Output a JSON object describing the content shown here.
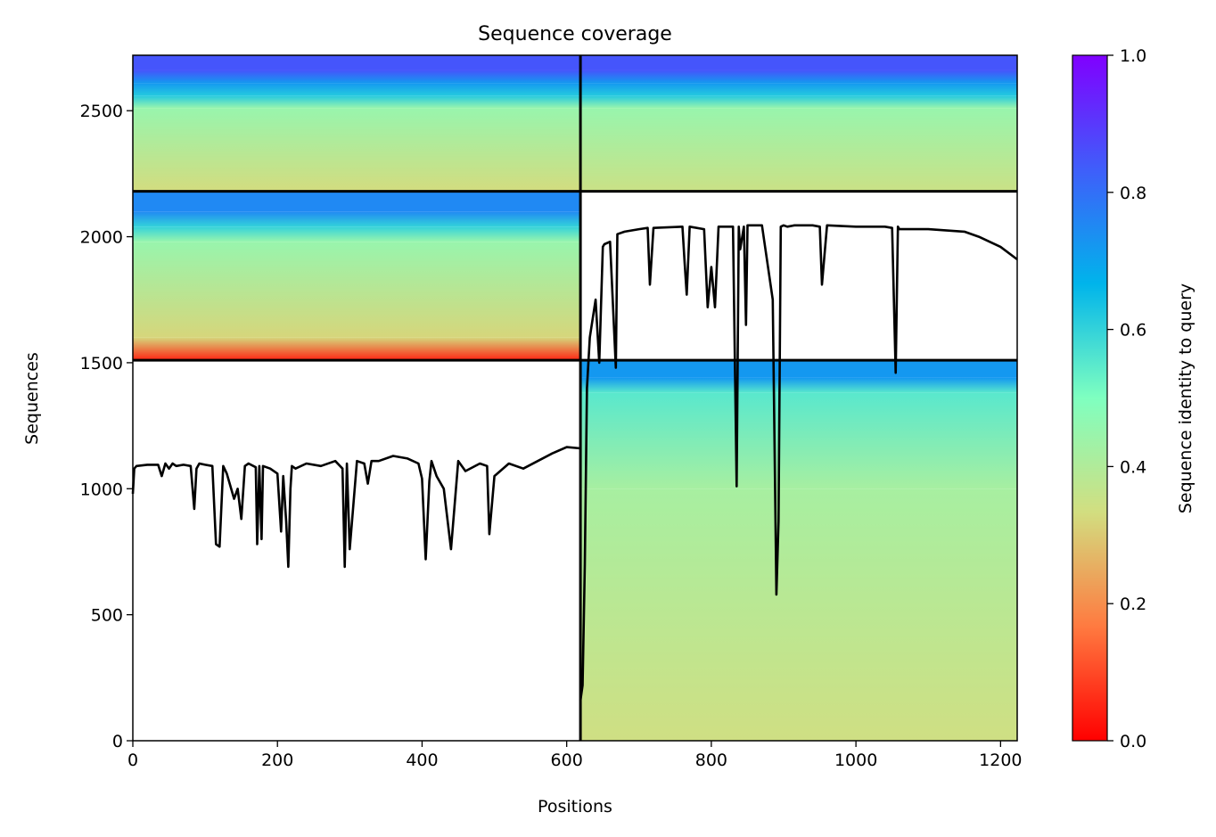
{
  "chart_data": {
    "type": "heatmap",
    "title": "Sequence coverage",
    "xlabel": "Positions",
    "ylabel": "Sequences",
    "xlim": [
      0,
      1223
    ],
    "ylim": [
      0,
      2720
    ],
    "xticks": [
      0,
      200,
      400,
      600,
      800,
      1000,
      1200
    ],
    "yticks": [
      0,
      500,
      1000,
      1500,
      2000,
      2500
    ],
    "grid": false,
    "colorbar": {
      "label": "Sequence identity to query",
      "min": 0.0,
      "max": 1.0,
      "ticks": [
        "0.0",
        "0.2",
        "0.4",
        "0.6",
        "0.8",
        "1.0"
      ],
      "colormap": "rainbow_r",
      "color_stops": [
        "#ff0000",
        "#ff7a40",
        "#d2de80",
        "#7fffc0",
        "#00b4eb",
        "#3f5efa",
        "#8000ff"
      ]
    },
    "line_color": "#000000",
    "blocks": [
      {
        "name": "msa-block-1",
        "x_range": [
          0,
          619
        ],
        "y_range": [
          2180,
          2720
        ],
        "identity_bands": [
          {
            "from": 2180,
            "to": 2510,
            "identity": 0.33
          },
          {
            "from": 2510,
            "to": 2560,
            "identity": 0.45
          },
          {
            "from": 2560,
            "to": 2610,
            "identity": 0.62
          },
          {
            "from": 2610,
            "to": 2660,
            "identity": 0.72
          },
          {
            "from": 2660,
            "to": 2720,
            "identity": 0.85
          }
        ]
      },
      {
        "name": "msa-block-2",
        "x_range": [
          619,
          1223
        ],
        "y_range": [
          2180,
          2720
        ],
        "identity_bands": [
          {
            "from": 2180,
            "to": 2510,
            "identity": 0.35
          },
          {
            "from": 2510,
            "to": 2560,
            "identity": 0.45
          },
          {
            "from": 2560,
            "to": 2610,
            "identity": 0.62
          },
          {
            "from": 2610,
            "to": 2660,
            "identity": 0.72
          },
          {
            "from": 2660,
            "to": 2720,
            "identity": 0.85
          }
        ]
      },
      {
        "name": "msa-block-3",
        "x_range": [
          0,
          619
        ],
        "y_range": [
          1510,
          2180
        ],
        "identity_bands": [
          {
            "from": 1510,
            "to": 1600,
            "identity": 0.05
          },
          {
            "from": 1600,
            "to": 1980,
            "identity": 0.32
          },
          {
            "from": 1980,
            "to": 2040,
            "identity": 0.45
          },
          {
            "from": 2040,
            "to": 2100,
            "identity": 0.6
          },
          {
            "from": 2100,
            "to": 2180,
            "identity": 0.75
          }
        ]
      },
      {
        "name": "msa-block-4",
        "x_range": [
          619,
          1223
        ],
        "y_range": [
          0,
          1510
        ],
        "identity_bands": [
          {
            "from": 0,
            "to": 1000,
            "identity": 0.34
          },
          {
            "from": 1000,
            "to": 1380,
            "identity": 0.42
          },
          {
            "from": 1380,
            "to": 1440,
            "identity": 0.55
          },
          {
            "from": 1440,
            "to": 1510,
            "identity": 0.72
          }
        ]
      }
    ],
    "coverage_segments": [
      {
        "name": "coverage-line-1",
        "x": [
          0,
          2,
          5,
          20,
          35,
          40,
          45,
          50,
          55,
          60,
          70,
          80,
          85,
          88,
          92,
          100,
          110,
          115,
          120,
          125,
          130,
          140,
          145,
          150,
          155,
          160,
          170,
          172,
          175,
          178,
          180,
          190,
          200,
          205,
          208,
          212,
          215,
          218,
          220,
          225,
          240,
          260,
          280,
          290,
          293,
          296,
          300,
          310,
          320,
          325,
          330,
          340,
          360,
          380,
          395,
          400,
          405,
          410,
          413,
          420,
          430,
          440,
          450,
          460,
          480,
          490,
          493,
          500,
          520,
          540,
          560,
          580,
          600,
          619
        ],
        "y": [
          980,
          1080,
          1090,
          1095,
          1095,
          1050,
          1100,
          1080,
          1100,
          1090,
          1095,
          1090,
          920,
          1080,
          1100,
          1095,
          1090,
          780,
          770,
          1090,
          1060,
          960,
          1000,
          880,
          1090,
          1100,
          1085,
          780,
          1090,
          800,
          1090,
          1080,
          1060,
          830,
          1050,
          870,
          690,
          1000,
          1090,
          1080,
          1100,
          1090,
          1110,
          1080,
          690,
          1100,
          760,
          1110,
          1100,
          1020,
          1110,
          1110,
          1130,
          1120,
          1100,
          1040,
          720,
          1030,
          1110,
          1050,
          1000,
          760,
          1110,
          1070,
          1100,
          1090,
          820,
          1050,
          1100,
          1080,
          1110,
          1140,
          1165,
          1160
        ]
      },
      {
        "name": "coverage-line-2",
        "x": [
          619,
          622,
          625,
          628,
          632,
          640,
          645,
          650,
          652,
          660,
          668,
          670,
          680,
          700,
          712,
          715,
          720,
          760,
          763,
          766,
          770,
          790,
          795,
          800,
          805,
          810,
          830,
          835,
          838,
          840,
          845,
          848,
          850,
          870,
          885,
          890,
          893,
          896,
          900,
          905,
          915,
          940,
          950,
          953,
          960,
          1000,
          1040,
          1050,
          1055,
          1058,
          1060,
          1100,
          1150,
          1170,
          1200,
          1223
        ],
        "y": [
          160,
          220,
          700,
          1400,
          1600,
          1750,
          1500,
          1960,
          1970,
          1980,
          1480,
          2010,
          2020,
          2030,
          2035,
          1810,
          2035,
          2040,
          1900,
          1770,
          2040,
          2030,
          1720,
          1880,
          1720,
          2040,
          2040,
          1010,
          2040,
          1950,
          2040,
          1650,
          2045,
          2045,
          1750,
          580,
          870,
          2040,
          2045,
          2040,
          2045,
          2045,
          2040,
          1810,
          2045,
          2040,
          2040,
          2035,
          1460,
          2040,
          2030,
          2030,
          2020,
          2000,
          1960,
          1910
        ]
      }
    ]
  }
}
